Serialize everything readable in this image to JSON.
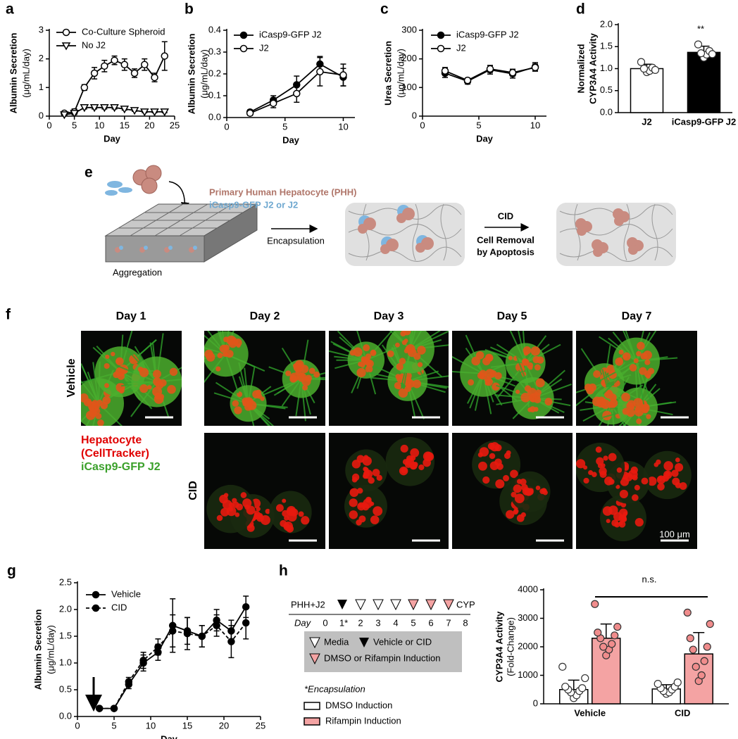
{
  "figure": {
    "panel_labels": [
      "a",
      "b",
      "c",
      "d",
      "e",
      "f",
      "g",
      "h"
    ],
    "diagram": {
      "pph_label": "Primary Human Hepatocyte (PHH)",
      "j2_label": "iCasp9-GFP J2 or J2",
      "aggregation": "Aggregation",
      "encapsulation": "Encapsulation",
      "cid": "CID",
      "removal": [
        "Cell Removal",
        "by Apoptosis"
      ]
    },
    "micrographs": {
      "days": [
        "Day 1",
        "Day 2",
        "Day 3",
        "Day 5",
        "Day 7"
      ],
      "rows": [
        "Vehicle",
        "CID"
      ],
      "legend": [
        "Hepatocyte",
        "(CellTracker)",
        "iCasp9-GFP J2"
      ],
      "scale": "100 μm"
    },
    "timeline": {
      "start": "PHH+J2",
      "end": "CYP",
      "day_label": "Day",
      "days": [
        "0",
        "1*",
        "2",
        "3",
        "4",
        "5",
        "6",
        "7",
        "8"
      ],
      "key": [
        "Media",
        "Vehicle or CID",
        "DMSO or Rifampin Induction"
      ],
      "footnote": "*Encapsulation"
    }
  },
  "chart_data": [
    {
      "type": "line",
      "xlabel": "Day",
      "ylabel": [
        "Albumin Secretion"
      ],
      "ylabel_unit": "(μg/mL/day)",
      "xlim": [
        0,
        25
      ],
      "xticks": [
        0,
        5,
        10,
        15,
        20,
        25
      ],
      "ylim": [
        0,
        3
      ],
      "yticks": [
        0,
        1,
        2,
        3
      ],
      "x": [
        3,
        5,
        7,
        9,
        11,
        13,
        15,
        17,
        19,
        21,
        23
      ],
      "series": [
        {
          "name": "Co-Culture Spheroid",
          "color": "#000000",
          "marker": "circle-open",
          "values": [
            0.1,
            0.15,
            1.0,
            1.5,
            1.75,
            1.95,
            1.8,
            1.5,
            1.8,
            1.35,
            2.1
          ],
          "errors": [
            0.05,
            0.1,
            0.1,
            0.2,
            0.2,
            0.15,
            0.2,
            0.15,
            0.2,
            0.15,
            0.5
          ]
        },
        {
          "name": "No J2",
          "color": "#000000",
          "marker": "triangle-open",
          "values": [
            0.05,
            0.1,
            0.3,
            0.3,
            0.3,
            0.3,
            0.25,
            0.2,
            0.15,
            0.15,
            0.15
          ],
          "errors": [
            0.03,
            0.03,
            0.05,
            0.05,
            0.05,
            0.05,
            0.04,
            0.03,
            0.03,
            0.03,
            0.03
          ]
        }
      ]
    },
    {
      "type": "line",
      "xlabel": "Day",
      "ylabel": [
        "Albumin Secretion"
      ],
      "ylabel_unit": "(μg/mL/day)",
      "xlim": [
        0,
        11
      ],
      "xticks": [
        0,
        5,
        10
      ],
      "ylim": [
        0,
        0.4
      ],
      "yticks": [
        {
          "value": 0,
          "label": "0.0"
        },
        0.1,
        0.2,
        0.3,
        0.4
      ],
      "x": [
        2,
        4,
        6,
        8,
        10
      ],
      "series": [
        {
          "name": "iCasp9-GFP J2",
          "color": "#000000",
          "marker": "circle-filled",
          "values": [
            0.025,
            0.08,
            0.15,
            0.245,
            0.185
          ],
          "errors": [
            0.01,
            0.02,
            0.04,
            0.035,
            0.04
          ]
        },
        {
          "name": "J2",
          "color": "#000000",
          "marker": "circle-open",
          "values": [
            0.02,
            0.065,
            0.11,
            0.21,
            0.195
          ],
          "errors": [
            0.01,
            0.02,
            0.04,
            0.065,
            0.05
          ]
        }
      ]
    },
    {
      "type": "line",
      "xlabel": "Day",
      "ylabel": [
        "Urea Secretion"
      ],
      "ylabel_unit": "(μg/mL/day)",
      "xlim": [
        0,
        11
      ],
      "xticks": [
        0,
        5,
        10
      ],
      "ylim": [
        0,
        300
      ],
      "yticks": [
        0,
        100,
        200,
        300
      ],
      "x": [
        2,
        4,
        6,
        8,
        10
      ],
      "series": [
        {
          "name": "iCasp9-GFP J2",
          "color": "#000000",
          "marker": "circle-filled",
          "values": [
            150,
            122,
            162,
            148,
            172
          ],
          "errors": [
            15,
            10,
            15,
            15,
            15
          ]
        },
        {
          "name": "J2",
          "color": "#000000",
          "marker": "circle-open",
          "values": [
            158,
            125,
            165,
            152,
            170
          ],
          "errors": [
            12,
            8,
            12,
            12,
            12
          ]
        }
      ]
    },
    {
      "type": "bar",
      "ylabel": [
        "Normalized",
        "CYP3A4 Activity"
      ],
      "ylim": [
        0,
        2
      ],
      "yticks": [
        {
          "value": 0,
          "label": "0.0"
        },
        0.5,
        {
          "value": 1,
          "label": "1.0"
        },
        1.5,
        {
          "value": 2,
          "label": "2.0"
        }
      ],
      "categories": [
        "J2",
        "iCasp9-GFP J2"
      ],
      "annotation": "**",
      "series": [
        {
          "colors": [
            "#ffffff",
            "#000000"
          ],
          "point_color": "#ffffff",
          "values": [
            1.0,
            1.37
          ],
          "errors": [
            0.1,
            0.14
          ],
          "points": [
            [
              0.92,
              0.95,
              1.0,
              1.02,
              1.15,
              0.97
            ],
            [
              1.25,
              1.32,
              1.35,
              1.4,
              1.55,
              1.33
            ]
          ]
        }
      ]
    },
    {
      "type": "line",
      "xlabel": "Day",
      "ylabel": [
        "Albumin Secretion"
      ],
      "ylabel_unit": "(μg/mL/day)",
      "xlim": [
        0,
        25
      ],
      "xticks": [
        0,
        5,
        10,
        15,
        20,
        25
      ],
      "ylim": [
        0,
        2.5
      ],
      "yticks": [
        {
          "value": 0,
          "label": "0.0"
        },
        0.5,
        {
          "value": 1,
          "label": "1.0"
        },
        1.5,
        {
          "value": 2,
          "label": "2.0"
        },
        2.5
      ],
      "x": [
        3,
        5,
        7,
        9,
        11,
        13,
        15,
        17,
        19,
        21,
        23
      ],
      "series": [
        {
          "name": "Vehicle",
          "color": "#000000",
          "marker": "circle-filled",
          "values": [
            0.15,
            0.15,
            0.6,
            1.0,
            1.2,
            1.7,
            1.6,
            1.5,
            1.8,
            1.6,
            2.05
          ],
          "errors": [
            0.02,
            0.02,
            0.08,
            0.15,
            0.15,
            0.5,
            0.25,
            0.2,
            0.2,
            0.2,
            0.2
          ]
        },
        {
          "name": "CID",
          "color": "#000000",
          "marker": "circle-filled",
          "dash": true,
          "values": [
            0.15,
            0.15,
            0.65,
            1.05,
            1.3,
            1.6,
            1.55,
            1.5,
            1.7,
            1.4,
            1.75
          ],
          "errors": [
            0.02,
            0.02,
            0.08,
            0.15,
            0.15,
            0.3,
            0.3,
            0.2,
            0.2,
            0.3,
            0.3
          ]
        }
      ]
    },
    {
      "type": "bar",
      "ylabel": [
        "CYP3A4 Activity"
      ],
      "ylabel_unit": "(Fold-Change)",
      "ylim": [
        0,
        4000
      ],
      "yticks": [
        0,
        1000,
        2000,
        3000,
        4000
      ],
      "categories": [
        "Vehicle",
        "CID"
      ],
      "annotation": "n.s.",
      "series": [
        {
          "name": "DMSO Induction",
          "color": "#ffffff",
          "point_color": "#ffffff",
          "values": [
            500,
            520
          ],
          "errors": [
            330,
            150
          ],
          "points": [
            [
              200,
              300,
              400,
              450,
              500,
              550,
              600,
              900,
              1300
            ],
            [
              350,
              400,
              450,
              500,
              550,
              600,
              700,
              750
            ]
          ]
        },
        {
          "name": "Rifampin Induction",
          "color": "#f4a3a3",
          "point_color": "#f08c8c",
          "values": [
            2300,
            1750
          ],
          "errors": [
            500,
            750
          ],
          "points": [
            [
              1700,
              1900,
              2000,
              2100,
              2300,
              2400,
              2500,
              2700,
              3500
            ],
            [
              800,
              1000,
              1300,
              1500,
              1900,
              2000,
              2300,
              2800,
              3200
            ]
          ]
        }
      ]
    }
  ]
}
